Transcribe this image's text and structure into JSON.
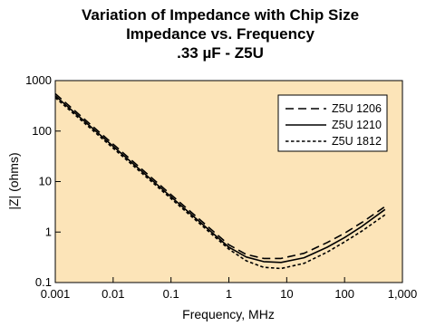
{
  "chart_data": {
    "type": "line",
    "title_lines": [
      "Variation of Impedance with Chip Size",
      "Impedance vs. Frequency",
      ".33 µF - Z5U"
    ],
    "xlabel": "Frequency, MHz",
    "ylabel": "|Z| (ohms)",
    "x_scale": "log",
    "y_scale": "log",
    "xlim": [
      0.001,
      1000
    ],
    "ylim": [
      0.1,
      1000
    ],
    "x_ticks": [
      0.001,
      0.01,
      0.1,
      1,
      10,
      100,
      1000
    ],
    "x_tick_labels": [
      "0.001",
      "0.01",
      "0.1",
      "1",
      "10",
      "100",
      "1,000"
    ],
    "y_ticks": [
      0.1,
      1,
      10,
      100,
      1000
    ],
    "y_tick_labels": [
      "0.1",
      "1",
      "10",
      "100",
      "1000"
    ],
    "grid": false,
    "legend_position": "top-right",
    "background_color": "#fce4b8",
    "series": [
      {
        "name": "Z5U 1206",
        "dash": "dashed",
        "x": [
          0.001,
          0.01,
          0.1,
          1,
          2,
          4,
          8,
          20,
          50,
          100,
          200,
          500
        ],
        "y": [
          550,
          55,
          5.5,
          0.56,
          0.36,
          0.3,
          0.3,
          0.38,
          0.62,
          0.95,
          1.55,
          3.2
        ]
      },
      {
        "name": "Z5U 1210",
        "dash": "solid",
        "x": [
          0.001,
          0.01,
          0.1,
          1,
          2,
          4,
          8,
          20,
          50,
          100,
          200,
          500
        ],
        "y": [
          500,
          50,
          5.0,
          0.5,
          0.32,
          0.26,
          0.25,
          0.31,
          0.5,
          0.78,
          1.3,
          2.8
        ]
      },
      {
        "name": "Z5U 1812",
        "dash": "dotted",
        "x": [
          0.001,
          0.01,
          0.1,
          1,
          2,
          4,
          8,
          20,
          50,
          100,
          200,
          500
        ],
        "y": [
          460,
          46,
          4.6,
          0.46,
          0.27,
          0.2,
          0.19,
          0.24,
          0.4,
          0.64,
          1.05,
          2.2
        ]
      }
    ]
  }
}
